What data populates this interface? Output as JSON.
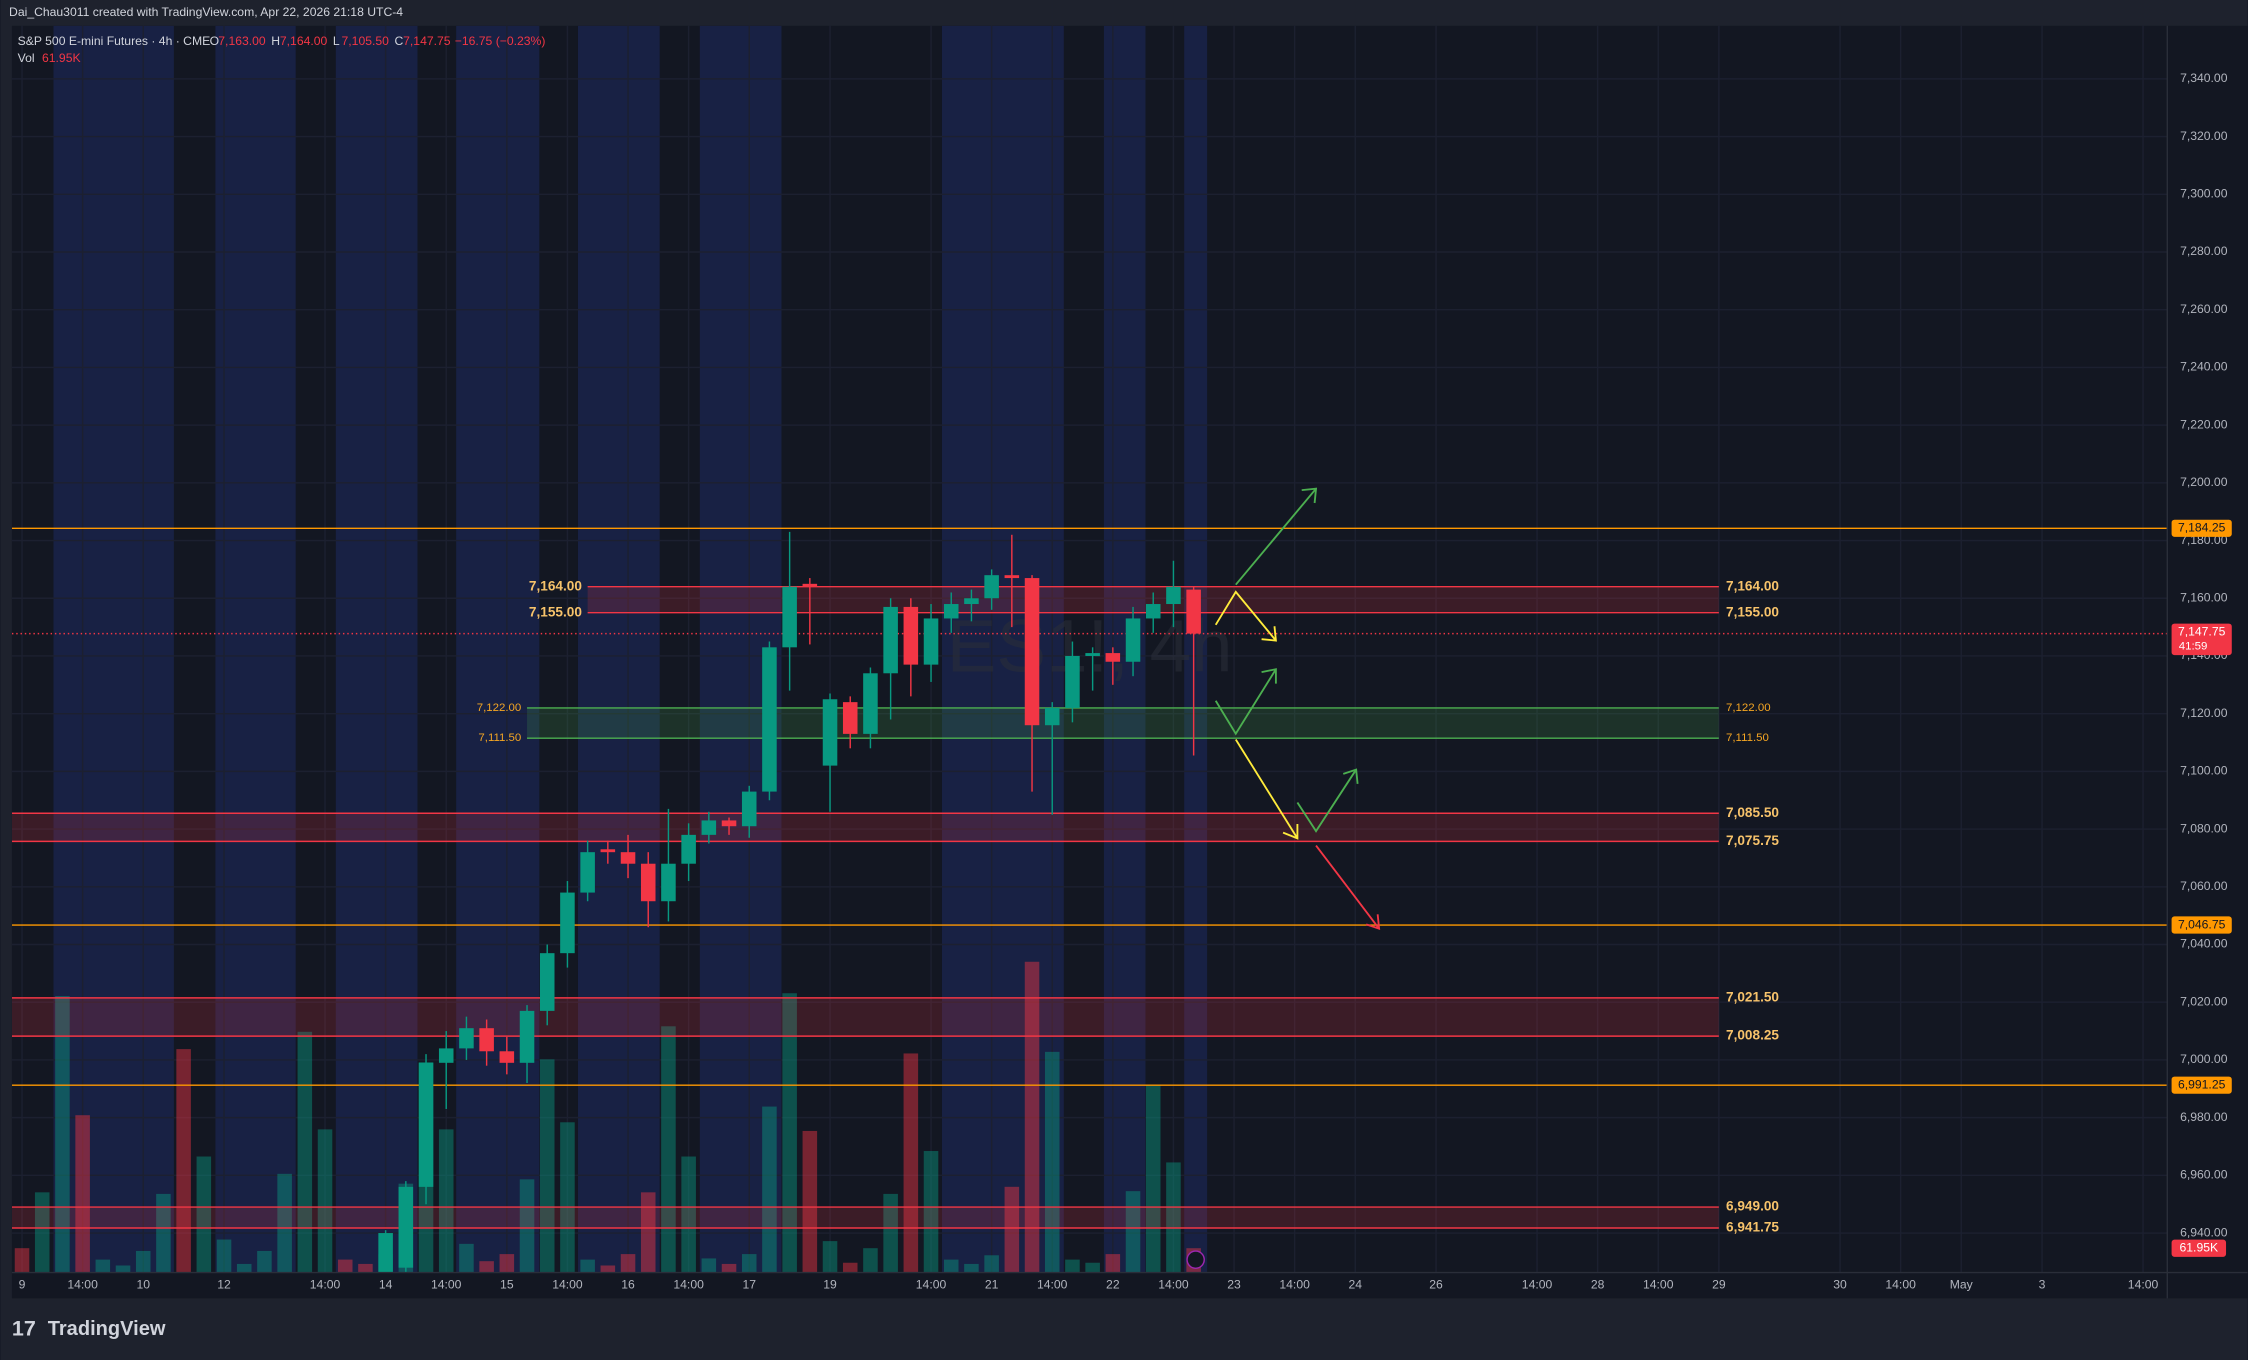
{
  "header": {
    "author_line": "Dai_Chau3011 created with TradingView.com, Apr 22, 2026 21:18 UTC-4",
    "brand": "TradingView"
  },
  "chart_data": {
    "type": "candlestick",
    "title": "S&P 500 E-mini Futures · 4h · CME",
    "watermark": "ES1!, 4h",
    "ohlc_legend": [
      {
        "key": "O",
        "value": "7,163.00"
      },
      {
        "key": "H",
        "value": "7,164.00"
      },
      {
        "key": "L",
        "value": "7,105.50"
      },
      {
        "key": "C",
        "value": "7,147.75"
      }
    ],
    "change_label": "−16.75 (−0.23%)",
    "volume_legend": {
      "key": "Vol",
      "value": "61.95K"
    },
    "up_color": "#089981",
    "down_color": "#f23645",
    "xlim": [
      -0.5,
      106.2
    ],
    "xticks": [
      {
        "value": 0,
        "label": "9"
      },
      {
        "value": 3,
        "label": "14:00"
      },
      {
        "value": 6,
        "label": "10"
      },
      {
        "value": 10,
        "label": "12"
      },
      {
        "value": 15,
        "label": "14:00"
      },
      {
        "value": 18,
        "label": "14"
      },
      {
        "value": 21,
        "label": "14:00"
      },
      {
        "value": 24,
        "label": "15"
      },
      {
        "value": 27,
        "label": "14:00"
      },
      {
        "value": 30,
        "label": "16"
      },
      {
        "value": 33,
        "label": "14:00"
      },
      {
        "value": 36,
        "label": "17"
      },
      {
        "value": 40,
        "label": "19"
      },
      {
        "value": 45,
        "label": "14:00"
      },
      {
        "value": 48,
        "label": "21"
      },
      {
        "value": 51,
        "label": "14:00"
      },
      {
        "value": 54,
        "label": "22"
      },
      {
        "value": 57,
        "label": "14:00"
      },
      {
        "value": 60,
        "label": "23"
      },
      {
        "value": 63,
        "label": "14:00"
      },
      {
        "value": 66,
        "label": "24"
      },
      {
        "value": 70,
        "label": "26"
      },
      {
        "value": 75,
        "label": "14:00"
      },
      {
        "value": 78,
        "label": "28"
      },
      {
        "value": 81,
        "label": "14:00"
      },
      {
        "value": 84,
        "label": "29"
      },
      {
        "value": 90,
        "label": "30"
      },
      {
        "value": 93,
        "label": "14:00"
      },
      {
        "value": 96,
        "label": "May"
      },
      {
        "value": 100,
        "label": "3"
      },
      {
        "value": 105,
        "label": "14:00"
      }
    ],
    "ylim": [
      6926.3,
      7358.4
    ],
    "yticks": [
      {
        "value": 6940,
        "label": "6,940.00"
      },
      {
        "value": 6960,
        "label": "6,960.00"
      },
      {
        "value": 6980,
        "label": "6,980.00"
      },
      {
        "value": 7000,
        "label": "7,000.00"
      },
      {
        "value": 7020,
        "label": "7,020.00"
      },
      {
        "value": 7040,
        "label": "7,040.00"
      },
      {
        "value": 7060,
        "label": "7,060.00"
      },
      {
        "value": 7080,
        "label": "7,080.00"
      },
      {
        "value": 7100,
        "label": "7,100.00"
      },
      {
        "value": 7120,
        "label": "7,120.00"
      },
      {
        "value": 7140,
        "label": "7,140.00"
      },
      {
        "value": 7160,
        "label": "7,160.00"
      },
      {
        "value": 7180,
        "label": "7,180.00"
      },
      {
        "value": 7200,
        "label": "7,200.00"
      },
      {
        "value": 7220,
        "label": "7,220.00"
      },
      {
        "value": 7240,
        "label": "7,240.00"
      },
      {
        "value": 7260,
        "label": "7,260.00"
      },
      {
        "value": 7280,
        "label": "7,280.00"
      },
      {
        "value": 7300,
        "label": "7,300.00"
      },
      {
        "value": 7320,
        "label": "7,320.00"
      },
      {
        "value": 7340,
        "label": "7,340.00"
      }
    ],
    "y2lim": [
      0,
      3169
    ],
    "grid": true,
    "open": [
      null,
      null,
      null,
      null,
      null,
      null,
      null,
      null,
      null,
      null,
      null,
      null,
      null,
      null,
      null,
      null,
      null,
      null,
      6925,
      6928,
      6956,
      6999,
      7004,
      7011,
      7003,
      6999,
      7017,
      7037,
      7058,
      7073,
      7072,
      7068,
      7055,
      7068,
      7078,
      7083,
      7081,
      7093,
      7143,
      7165,
      7102,
      7124,
      7113,
      7134,
      7157,
      7137,
      7153,
      7158,
      7160,
      7168,
      7167,
      7116,
      7122,
      7140,
      7141,
      7138,
      7153,
      7158,
      7163
    ],
    "high": [
      null,
      null,
      null,
      null,
      null,
      null,
      null,
      null,
      null,
      null,
      null,
      null,
      null,
      null,
      null,
      null,
      null,
      null,
      6941,
      6958,
      7002,
      7010,
      7015,
      7014,
      7008,
      7019,
      7040,
      7062,
      7076,
      7076,
      7078,
      7072,
      7087,
      7082,
      7086,
      7084,
      7095,
      7145,
      7183,
      7167,
      7127,
      7126,
      7136,
      7160,
      7160,
      7158,
      7162,
      7163,
      7170,
      7182,
      7168,
      7124,
      7145,
      7143,
      7143,
      7157,
      7162,
      7173,
      7164
    ],
    "low": [
      null,
      null,
      null,
      null,
      null,
      null,
      null,
      null,
      null,
      null,
      null,
      null,
      null,
      null,
      null,
      null,
      null,
      null,
      6920,
      6920,
      6950,
      6983,
      7000,
      6998,
      6995,
      6992,
      7012,
      7032,
      7055,
      7068,
      7063,
      7046,
      7048,
      7062,
      7075,
      7078,
      7077,
      7090,
      7128,
      7144,
      7086,
      7108,
      7108,
      7118,
      7126,
      7131,
      7148,
      7152,
      7156,
      7150,
      7093,
      7085,
      7117,
      7128,
      7130,
      7133,
      7148,
      7150,
      7105.5
    ],
    "close": [
      null,
      null,
      null,
      null,
      null,
      null,
      null,
      null,
      null,
      null,
      null,
      null,
      null,
      null,
      null,
      null,
      null,
      null,
      6940,
      6956,
      6999,
      7004,
      7011,
      7003,
      6999,
      7017,
      7037,
      7058,
      7072,
      7072,
      7068,
      7055,
      7068,
      7078,
      7083,
      7081,
      7093,
      7143,
      7164,
      7164,
      7125,
      7113,
      7134,
      7157,
      7137,
      7153,
      7158,
      7160,
      7168,
      7167,
      7116,
      7122,
      7140,
      7141,
      7138,
      7153,
      7158,
      7164,
      7147.75
    ],
    "series": [
      {
        "name": "Vol",
        "axis": "y2",
        "values": [
          62,
          204,
          703,
          400,
          33,
          18,
          55,
          200,
          568,
          295,
          84,
          22,
          55,
          251,
          612,
          364,
          33,
          22,
          47,
          226,
          535,
          364,
          73,
          29,
          47,
          237,
          542,
          382,
          33,
          18,
          47,
          204,
          626,
          295,
          36,
          22,
          47,
          422,
          710,
          360,
          80,
          25,
          62,
          200,
          557,
          309,
          33,
          22,
          44,
          218,
          790,
          561,
          33,
          25,
          47,
          207,
          477,
          280,
          61.95
        ],
        "colors": [
          "#f23645",
          "#089981",
          "#089981",
          "#f23645",
          "#089981",
          "#089981",
          "#089981",
          "#089981",
          "#f23645",
          "#089981",
          "#089981",
          "#089981",
          "#089981",
          "#089981",
          "#089981",
          "#089981",
          "#f23645",
          "#f23645",
          "#089981",
          "#089981",
          "#089981",
          "#089981",
          "#089981",
          "#f23645",
          "#f23645",
          "#089981",
          "#089981",
          "#089981",
          "#089981",
          "#f23645",
          "#f23645",
          "#f23645",
          "#089981",
          "#089981",
          "#089981",
          "#f23645",
          "#089981",
          "#089981",
          "#089981",
          "#f23645",
          "#089981",
          "#f23645",
          "#089981",
          "#089981",
          "#f23645",
          "#089981",
          "#089981",
          "#089981",
          "#089981",
          "#f23645",
          "#f23645",
          "#089981",
          "#089981",
          "#089981",
          "#f23645",
          "#089981",
          "#089981",
          "#089981",
          "#f23645"
        ],
        "last_label": "61.95K"
      }
    ],
    "zones": [
      {
        "top": 7164,
        "bottom": 7155,
        "top_label": "7,164.00",
        "bottom_label": "7,155.00",
        "color": "#f23645",
        "start": 28,
        "end": 84,
        "left_labels": true
      },
      {
        "top": 7122,
        "bottom": 7111.5,
        "top_label": "7,122.00",
        "bottom_label": "7,111.50",
        "color": "#4caf50",
        "start": 25,
        "end": 84,
        "left_labels": true
      },
      {
        "top": 7085.5,
        "bottom": 7075.75,
        "top_label": "7,085.50",
        "bottom_label": "7,075.75",
        "color": "#f23645",
        "end": 84
      },
      {
        "top": 7021.5,
        "bottom": 7008.25,
        "top_label": "7,021.50",
        "bottom_label": "7,008.25",
        "color": "#f23645",
        "end": 84
      },
      {
        "top": 6949,
        "bottom": 6941.75,
        "top_label": "6,949.00",
        "bottom_label": "6,941.75",
        "color": "#f23645",
        "end": 84
      }
    ],
    "levels": [
      {
        "value": 7184.25,
        "label": "7,184.25",
        "color": "#ff9800"
      },
      {
        "value": 7046.75,
        "label": "7,046.75",
        "color": "#ff9800"
      },
      {
        "value": 6991.25,
        "label": "6,991.25",
        "color": "#ff9800"
      }
    ],
    "last_price": {
      "value": 7147.75,
      "label": "7,147.75",
      "countdown": "41:59",
      "color": "#f23645"
    }
  }
}
